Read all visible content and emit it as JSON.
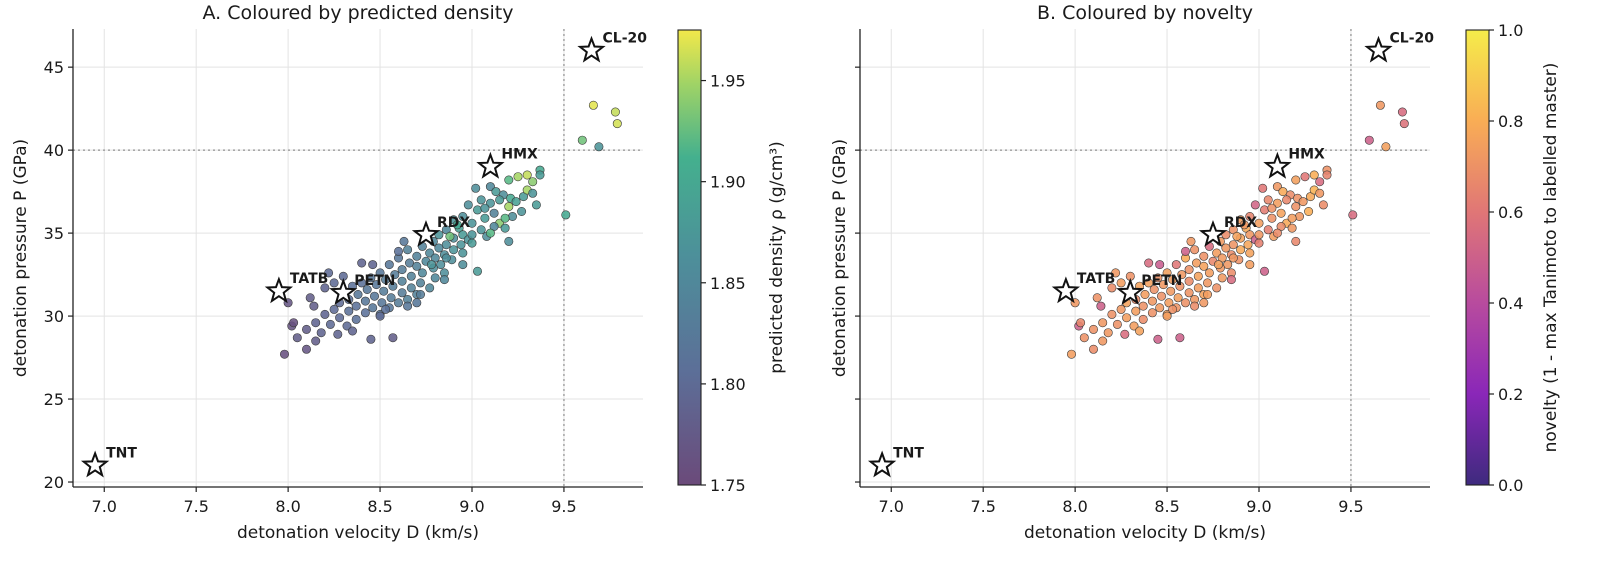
{
  "chart_data": [
    {
      "type": "scatter",
      "title": "A. Coloured by predicted density",
      "xlabel": "detonation velocity D (km/s)",
      "ylabel": "detonation pressure P (GPa)",
      "xlim": [
        6.83,
        9.93
      ],
      "ylim": [
        19.7,
        47.3
      ],
      "xticks": [
        "7.0",
        "7.5",
        "8.0",
        "8.5",
        "9.0",
        "9.5"
      ],
      "yticks": [
        "20",
        "25",
        "30",
        "35",
        "40",
        "45"
      ],
      "grid": true,
      "thresholds": {
        "x": 9.5,
        "y": 40
      },
      "colorbar": {
        "label": "predicted density ρ (g/cm³)",
        "range": [
          1.75,
          1.975
        ],
        "ticks": [
          "1.75",
          "1.80",
          "1.85",
          "1.90",
          "1.95"
        ],
        "colormap": "viridis"
      },
      "color_variable": "density",
      "references": [
        {
          "name": "TNT",
          "x": 6.95,
          "y": 21.0
        },
        {
          "name": "TATB",
          "x": 7.95,
          "y": 31.5
        },
        {
          "name": "PETN",
          "x": 8.3,
          "y": 31.4
        },
        {
          "name": "RDX",
          "x": 8.75,
          "y": 34.9
        },
        {
          "name": "HMX",
          "x": 9.1,
          "y": 39.0
        },
        {
          "name": "CL-20",
          "x": 9.65,
          "y": 46.0
        }
      ]
    },
    {
      "type": "scatter",
      "title": "B. Coloured by novelty",
      "xlabel": "detonation velocity D (km/s)",
      "ylabel": "detonation pressure P (GPa)",
      "xlim": [
        6.83,
        9.93
      ],
      "ylim": [
        19.7,
        47.3
      ],
      "xticks": [
        "7.0",
        "7.5",
        "8.0",
        "8.5",
        "9.0",
        "9.5"
      ],
      "yticks": [
        "20",
        "25",
        "30",
        "35",
        "40",
        "45"
      ],
      "grid": true,
      "thresholds": {
        "x": 9.5,
        "y": 40
      },
      "colorbar": {
        "label": "novelty (1 - max Tanimoto to labelled master)",
        "range": [
          0.0,
          1.0
        ],
        "ticks": [
          "0.0",
          "0.2",
          "0.4",
          "0.6",
          "0.8",
          "1.0"
        ],
        "colormap": "plasma"
      },
      "color_variable": "novelty",
      "references": [
        {
          "name": "TNT",
          "x": 6.95,
          "y": 21.0
        },
        {
          "name": "TATB",
          "x": 7.95,
          "y": 31.5
        },
        {
          "name": "PETN",
          "x": 8.3,
          "y": 31.4
        },
        {
          "name": "RDX",
          "x": 8.75,
          "y": 34.9
        },
        {
          "name": "HMX",
          "x": 9.1,
          "y": 39.0
        },
        {
          "name": "CL-20",
          "x": 9.65,
          "y": 46.0
        }
      ]
    }
  ],
  "points": [
    [
      9.66,
      42.7,
      1.97,
      0.72
    ],
    [
      9.78,
      42.3,
      1.96,
      0.55
    ],
    [
      9.79,
      41.6,
      1.965,
      0.58
    ],
    [
      9.6,
      40.6,
      1.93,
      0.5
    ],
    [
      9.69,
      40.2,
      1.87,
      0.75
    ],
    [
      9.51,
      36.1,
      1.9,
      0.55
    ],
    [
      9.37,
      38.8,
      1.9,
      0.7
    ],
    [
      9.37,
      38.5,
      1.88,
      0.65
    ],
    [
      9.3,
      38.5,
      1.96,
      0.8
    ],
    [
      9.25,
      38.4,
      1.95,
      0.6
    ],
    [
      9.2,
      38.2,
      1.92,
      0.75
    ],
    [
      9.33,
      38.1,
      1.94,
      0.55
    ],
    [
      9.1,
      37.8,
      1.85,
      0.72
    ],
    [
      9.13,
      37.5,
      1.88,
      0.78
    ],
    [
      9.17,
      37.3,
      1.86,
      0.68
    ],
    [
      9.21,
      37.1,
      1.9,
      0.7
    ],
    [
      9.28,
      37.2,
      1.88,
      0.78
    ],
    [
      9.24,
      36.9,
      1.89,
      0.72
    ],
    [
      9.35,
      36.7,
      1.88,
      0.68
    ],
    [
      9.05,
      37.0,
      1.87,
      0.66
    ],
    [
      9.1,
      36.8,
      1.87,
      0.74
    ],
    [
      9.2,
      36.6,
      1.95,
      0.7
    ],
    [
      8.98,
      36.7,
      1.86,
      0.52
    ],
    [
      9.03,
      36.4,
      1.88,
      0.62
    ],
    [
      9.12,
      36.2,
      1.84,
      0.76
    ],
    [
      9.27,
      36.3,
      1.87,
      0.8
    ],
    [
      9.22,
      36.0,
      1.86,
      0.72
    ],
    [
      9.07,
      35.9,
      1.88,
      0.7
    ],
    [
      9.15,
      35.6,
      1.94,
      0.78
    ],
    [
      8.95,
      36.0,
      1.86,
      0.65
    ],
    [
      9.0,
      35.6,
      1.87,
      0.74
    ],
    [
      9.12,
      35.4,
      1.85,
      0.68
    ],
    [
      9.18,
      35.3,
      1.88,
      0.72
    ],
    [
      8.9,
      35.8,
      1.87,
      0.74
    ],
    [
      8.93,
      35.3,
      1.89,
      0.78
    ],
    [
      9.05,
      35.2,
      1.87,
      0.63
    ],
    [
      8.86,
      35.2,
      1.85,
      0.7
    ],
    [
      8.95,
      34.9,
      1.88,
      0.72
    ],
    [
      9.08,
      34.8,
      1.86,
      0.74
    ],
    [
      8.82,
      34.9,
      1.87,
      0.68
    ],
    [
      8.9,
      34.7,
      1.86,
      0.76
    ],
    [
      8.98,
      34.6,
      1.87,
      0.5
    ],
    [
      9.2,
      34.5,
      1.86,
      0.66
    ],
    [
      8.79,
      34.5,
      1.85,
      0.73
    ],
    [
      8.86,
      34.3,
      1.86,
      0.71
    ],
    [
      8.94,
      34.3,
      1.87,
      0.77
    ],
    [
      9.0,
      34.4,
      1.88,
      0.64
    ],
    [
      8.73,
      34.2,
      1.84,
      0.55
    ],
    [
      8.82,
      34.1,
      1.85,
      0.72
    ],
    [
      8.9,
      34.0,
      1.87,
      0.78
    ],
    [
      8.65,
      34.0,
      1.84,
      0.7
    ],
    [
      8.77,
      33.8,
      1.85,
      0.74
    ],
    [
      8.85,
      33.7,
      1.86,
      0.68
    ],
    [
      8.95,
      33.8,
      1.87,
      0.76
    ],
    [
      8.7,
      33.6,
      1.84,
      0.7
    ],
    [
      8.8,
      33.5,
      1.85,
      0.73
    ],
    [
      8.6,
      33.5,
      1.82,
      0.79
    ],
    [
      8.89,
      33.4,
      1.86,
      0.7
    ],
    [
      8.75,
      33.3,
      1.85,
      0.66
    ],
    [
      8.66,
      33.2,
      1.83,
      0.74
    ],
    [
      8.83,
      33.1,
      1.86,
      0.72
    ],
    [
      8.55,
      33.1,
      1.82,
      0.6
    ],
    [
      8.7,
      33.0,
      1.84,
      0.76
    ],
    [
      8.79,
      32.9,
      1.86,
      0.72
    ],
    [
      8.62,
      32.8,
      1.83,
      0.7
    ],
    [
      8.73,
      32.6,
      1.85,
      0.74
    ],
    [
      8.85,
      32.6,
      1.86,
      0.68
    ],
    [
      9.03,
      32.7,
      1.88,
      0.5
    ],
    [
      8.5,
      32.6,
      1.82,
      0.75
    ],
    [
      8.58,
      32.5,
      1.83,
      0.72
    ],
    [
      8.67,
      32.4,
      1.84,
      0.76
    ],
    [
      8.8,
      32.3,
      1.85,
      0.73
    ],
    [
      8.45,
      32.3,
      1.82,
      0.7
    ],
    [
      8.53,
      32.2,
      1.83,
      0.74
    ],
    [
      8.62,
      32.1,
      1.84,
      0.68
    ],
    [
      8.72,
      32.0,
      1.84,
      0.72
    ],
    [
      8.4,
      32.0,
      1.81,
      0.75
    ],
    [
      8.48,
      31.9,
      1.82,
      0.72
    ],
    [
      8.57,
      31.8,
      1.83,
      0.7
    ],
    [
      8.67,
      31.7,
      1.84,
      0.74
    ],
    [
      8.77,
      31.7,
      1.85,
      0.7
    ],
    [
      8.35,
      31.8,
      1.81,
      0.76
    ],
    [
      8.43,
      31.6,
      1.82,
      0.7
    ],
    [
      8.52,
      31.5,
      1.83,
      0.73
    ],
    [
      8.62,
      31.4,
      1.83,
      0.71
    ],
    [
      8.7,
      31.3,
      1.84,
      0.76
    ],
    [
      8.3,
      31.4,
      1.81,
      0.72
    ],
    [
      8.38,
      31.3,
      1.82,
      0.74
    ],
    [
      8.47,
      31.2,
      1.82,
      0.7
    ],
    [
      8.56,
      31.1,
      1.83,
      0.75
    ],
    [
      8.65,
      31.0,
      1.84,
      0.72
    ],
    [
      8.33,
      31.0,
      1.81,
      0.68
    ],
    [
      8.42,
      30.9,
      1.82,
      0.72
    ],
    [
      8.51,
      30.8,
      1.82,
      0.74
    ],
    [
      8.6,
      30.8,
      1.83,
      0.7
    ],
    [
      8.28,
      30.8,
      1.8,
      0.76
    ],
    [
      8.37,
      30.6,
      1.81,
      0.7
    ],
    [
      8.46,
      30.5,
      1.82,
      0.73
    ],
    [
      8.55,
      30.5,
      1.82,
      0.71
    ],
    [
      8.25,
      30.4,
      1.8,
      0.72
    ],
    [
      8.33,
      30.3,
      1.81,
      0.74
    ],
    [
      8.42,
      30.2,
      1.81,
      0.7
    ],
    [
      8.5,
      30.1,
      1.82,
      0.75
    ],
    [
      8.2,
      30.1,
      1.79,
      0.7
    ],
    [
      8.28,
      29.9,
      1.8,
      0.74
    ],
    [
      8.37,
      29.8,
      1.81,
      0.68
    ],
    [
      8.15,
      29.6,
      1.79,
      0.72
    ],
    [
      8.23,
      29.5,
      1.8,
      0.7
    ],
    [
      8.32,
      29.4,
      1.8,
      0.74
    ],
    [
      8.1,
      29.2,
      1.78,
      0.7
    ],
    [
      8.18,
      29.0,
      1.79,
      0.72
    ],
    [
      8.27,
      28.9,
      1.79,
      0.56
    ],
    [
      8.05,
      28.7,
      1.78,
      0.7
    ],
    [
      8.15,
      28.5,
      1.78,
      0.72
    ],
    [
      8.1,
      28.0,
      1.77,
      0.68
    ],
    [
      7.98,
      27.7,
      1.76,
      0.74
    ],
    [
      8.02,
      29.4,
      1.765,
      0.5
    ],
    [
      8.03,
      29.6,
      1.76,
      0.66
    ],
    [
      8.0,
      30.8,
      1.77,
      0.72
    ],
    [
      8.12,
      31.1,
      1.78,
      0.7
    ],
    [
      8.14,
      30.6,
      1.78,
      0.5
    ],
    [
      8.2,
      31.7,
      1.79,
      0.68
    ],
    [
      8.25,
      32.0,
      1.8,
      0.74
    ],
    [
      8.22,
      32.6,
      1.8,
      0.72
    ],
    [
      8.46,
      33.1,
      1.79,
      0.48
    ],
    [
      8.6,
      33.9,
      1.81,
      0.5
    ],
    [
      8.63,
      34.5,
      1.82,
      0.72
    ],
    [
      8.4,
      33.2,
      1.79,
      0.55
    ],
    [
      8.3,
      32.4,
      1.8,
      0.7
    ],
    [
      8.5,
      30.0,
      1.8,
      0.74
    ],
    [
      8.57,
      28.7,
      1.78,
      0.5
    ],
    [
      8.45,
      28.6,
      1.79,
      0.5
    ],
    [
      8.35,
      29.1,
      1.79,
      0.76
    ],
    [
      8.53,
      30.4,
      1.81,
      0.7
    ],
    [
      8.65,
      30.6,
      1.82,
      0.68
    ],
    [
      8.7,
      30.8,
      1.82,
      0.72
    ],
    [
      8.72,
      31.3,
      1.83,
      0.74
    ],
    [
      8.78,
      33.1,
      1.87,
      0.75
    ],
    [
      8.86,
      33.5,
      1.86,
      0.72
    ],
    [
      9.0,
      34.9,
      1.87,
      0.72
    ],
    [
      9.1,
      35.0,
      1.92,
      0.68
    ],
    [
      8.88,
      34.8,
      1.93,
      0.76
    ],
    [
      8.92,
      35.5,
      1.9,
      0.72
    ],
    [
      9.18,
      35.9,
      1.92,
      0.74
    ],
    [
      9.3,
      37.6,
      1.95,
      0.82
    ],
    [
      9.07,
      36.5,
      1.87,
      0.7
    ],
    [
      9.15,
      37.0,
      1.88,
      0.66
    ],
    [
      9.33,
      37.4,
      1.87,
      0.72
    ],
    [
      9.02,
      37.7,
      1.86,
      0.6
    ],
    [
      8.95,
      33.1,
      1.86,
      0.74
    ],
    [
      8.85,
      32.2,
      1.85,
      0.55
    ]
  ]
}
